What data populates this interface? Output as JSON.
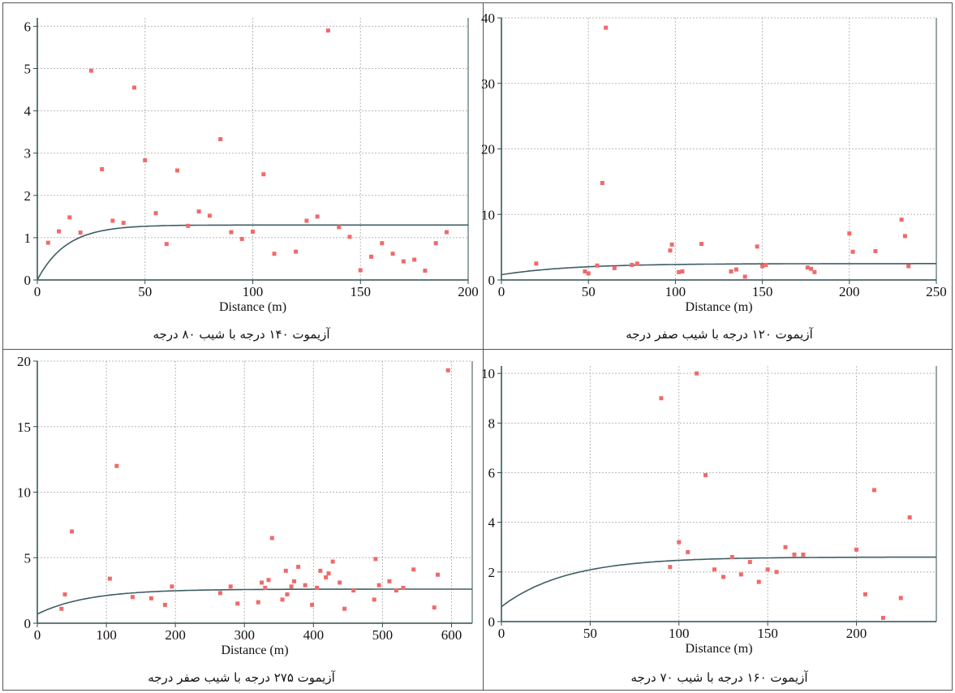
{
  "colors": {
    "axis": "#2f4f4f",
    "grid": "#b8b8b8",
    "point": "#f06a6a",
    "curve": "#3e5e62"
  },
  "chart_data": [
    {
      "type": "scatter",
      "caption": "آزیموت ۱۴۰ درجه با شیب ۸۰ درجه",
      "xlabel": "Distance (m)",
      "ylabel": "",
      "xlim": [
        0,
        200
      ],
      "ylim": [
        0,
        6.2
      ],
      "xticks": [
        0,
        50,
        100,
        150,
        200
      ],
      "yticks": [
        0,
        1,
        2,
        3,
        4,
        5,
        6
      ],
      "grid": true,
      "points": [
        [
          5,
          0.88
        ],
        [
          10,
          1.15
        ],
        [
          15,
          1.48
        ],
        [
          20,
          1.12
        ],
        [
          25,
          4.95
        ],
        [
          30,
          2.62
        ],
        [
          35,
          1.4
        ],
        [
          40,
          1.35
        ],
        [
          45,
          4.55
        ],
        [
          50,
          2.83
        ],
        [
          55,
          1.58
        ],
        [
          60,
          0.85
        ],
        [
          65,
          2.59
        ],
        [
          70,
          1.28
        ],
        [
          75,
          1.62
        ],
        [
          80,
          1.52
        ],
        [
          85,
          3.33
        ],
        [
          90,
          1.13
        ],
        [
          95,
          0.97
        ],
        [
          100,
          1.14
        ],
        [
          105,
          2.5
        ],
        [
          110,
          0.62
        ],
        [
          120,
          0.67
        ],
        [
          125,
          1.4
        ],
        [
          130,
          1.5
        ],
        [
          135,
          5.9
        ],
        [
          140,
          1.25
        ],
        [
          145,
          1.02
        ],
        [
          150,
          0.23
        ],
        [
          155,
          0.55
        ],
        [
          160,
          0.87
        ],
        [
          165,
          0.62
        ],
        [
          170,
          0.44
        ],
        [
          175,
          0.48
        ],
        [
          180,
          0.22
        ],
        [
          185,
          0.87
        ],
        [
          190,
          1.13
        ]
      ],
      "model": {
        "nugget": 0,
        "sill": 1.3,
        "range": 40,
        "shape": "exp"
      }
    },
    {
      "type": "scatter",
      "caption": "آزیموت ۱۲۰ درجه با شیب صفر درجه",
      "xlabel": "Distance (m)",
      "ylabel": "",
      "xlim": [
        0,
        250
      ],
      "ylim": [
        0,
        40
      ],
      "xticks": [
        0,
        50,
        100,
        150,
        200,
        250
      ],
      "yticks": [
        0,
        10,
        20,
        30,
        40
      ],
      "grid": true,
      "points": [
        [
          20,
          2.5
        ],
        [
          48,
          1.3
        ],
        [
          50,
          1.0
        ],
        [
          55,
          2.2
        ],
        [
          58,
          14.8
        ],
        [
          60,
          38.5
        ],
        [
          65,
          1.8
        ],
        [
          75,
          2.3
        ],
        [
          78,
          2.5
        ],
        [
          97,
          4.5
        ],
        [
          98,
          5.4
        ],
        [
          102,
          1.2
        ],
        [
          104,
          1.3
        ],
        [
          115,
          5.5
        ],
        [
          132,
          1.3
        ],
        [
          135,
          1.6
        ],
        [
          140,
          0.5
        ],
        [
          147,
          5.1
        ],
        [
          150,
          2.1
        ],
        [
          152,
          2.3
        ],
        [
          176,
          1.9
        ],
        [
          178,
          1.7
        ],
        [
          180,
          1.2
        ],
        [
          200,
          7.1
        ],
        [
          202,
          4.3
        ],
        [
          215,
          4.4
        ],
        [
          230,
          9.2
        ],
        [
          232,
          6.7
        ],
        [
          234,
          2.1
        ]
      ],
      "model": {
        "nugget": 0.8,
        "sill": 2.5,
        "range": 120,
        "shape": "exp"
      }
    },
    {
      "type": "scatter",
      "caption": "آزیموت ۲۷۵ درجه با شیب صفر درجه",
      "xlabel": "Distance (m)",
      "ylabel": "",
      "xlim": [
        0,
        630
      ],
      "ylim": [
        0,
        20
      ],
      "xticks": [
        0,
        100,
        200,
        300,
        400,
        500,
        600
      ],
      "yticks": [
        0,
        5,
        10,
        15,
        20
      ],
      "grid": true,
      "points": [
        [
          35,
          1.1
        ],
        [
          40,
          2.2
        ],
        [
          50,
          7.0
        ],
        [
          105,
          3.4
        ],
        [
          115,
          12.0
        ],
        [
          138,
          2.0
        ],
        [
          165,
          1.9
        ],
        [
          185,
          1.4
        ],
        [
          195,
          2.8
        ],
        [
          265,
          2.3
        ],
        [
          280,
          2.8
        ],
        [
          290,
          1.5
        ],
        [
          320,
          1.6
        ],
        [
          325,
          3.1
        ],
        [
          330,
          2.7
        ],
        [
          335,
          3.3
        ],
        [
          340,
          6.5
        ],
        [
          355,
          1.8
        ],
        [
          360,
          4.0
        ],
        [
          362,
          2.2
        ],
        [
          368,
          2.8
        ],
        [
          372,
          3.2
        ],
        [
          378,
          4.3
        ],
        [
          388,
          2.9
        ],
        [
          398,
          1.4
        ],
        [
          405,
          2.7
        ],
        [
          410,
          4.0
        ],
        [
          418,
          3.5
        ],
        [
          422,
          3.8
        ],
        [
          428,
          4.7
        ],
        [
          438,
          3.1
        ],
        [
          445,
          1.1
        ],
        [
          458,
          2.5
        ],
        [
          488,
          1.8
        ],
        [
          490,
          4.9
        ],
        [
          495,
          2.9
        ],
        [
          510,
          3.2
        ],
        [
          520,
          2.5
        ],
        [
          530,
          2.7
        ],
        [
          545,
          4.1
        ],
        [
          575,
          1.2
        ],
        [
          580,
          3.7
        ],
        [
          595,
          19.3
        ]
      ],
      "model": {
        "nugget": 0.7,
        "sill": 2.6,
        "range": 220,
        "shape": "exp"
      }
    },
    {
      "type": "scatter",
      "caption": "آزیموت ۱۶۰ درجه با شیب ۷۰ درجه",
      "xlabel": "Distance (m)",
      "ylabel": "",
      "xlim": [
        0,
        245
      ],
      "ylim": [
        0,
        10.3
      ],
      "xticks": [
        0,
        50,
        100,
        150,
        200
      ],
      "yticks": [
        0,
        2,
        4,
        6,
        8,
        10
      ],
      "grid": true,
      "points": [
        [
          90,
          9.0
        ],
        [
          95,
          2.2
        ],
        [
          100,
          3.2
        ],
        [
          105,
          2.8
        ],
        [
          110,
          10.0
        ],
        [
          115,
          5.9
        ],
        [
          120,
          2.1
        ],
        [
          125,
          1.8
        ],
        [
          130,
          2.6
        ],
        [
          135,
          1.9
        ],
        [
          140,
          2.4
        ],
        [
          145,
          1.6
        ],
        [
          150,
          2.1
        ],
        [
          155,
          2.0
        ],
        [
          160,
          3.0
        ],
        [
          165,
          2.7
        ],
        [
          170,
          2.7
        ],
        [
          200,
          2.9
        ],
        [
          205,
          1.1
        ],
        [
          210,
          5.3
        ],
        [
          215,
          0.15
        ],
        [
          225,
          0.95
        ],
        [
          230,
          4.2
        ]
      ],
      "model": {
        "nugget": 0.6,
        "sill": 2.6,
        "range": 110,
        "shape": "exp"
      }
    }
  ]
}
